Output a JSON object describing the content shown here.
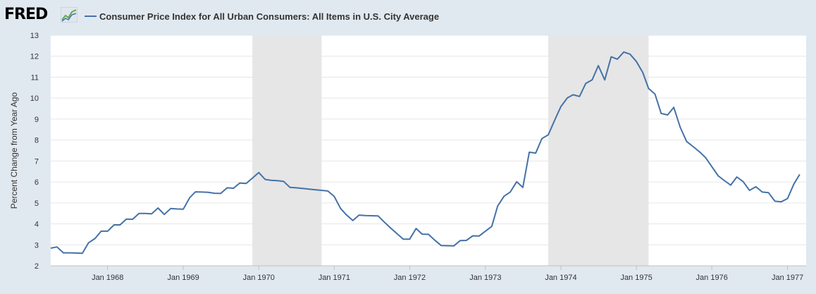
{
  "header": {
    "logo_text": "FRED",
    "logo_icon": "trend-chart-icon"
  },
  "colors": {
    "series": "#4572a7",
    "recession": "#e6e6e6",
    "plot_bg": "#ffffff",
    "page_bg": "#e1e9f0",
    "grid": "#e6e6e6"
  },
  "chart_data": {
    "type": "line",
    "title": "",
    "xlabel": "",
    "ylabel": "Percent Change from Year Ago",
    "ylim": [
      2,
      13
    ],
    "xlim": [
      "1967-04-01",
      "1977-04-01"
    ],
    "yticks": [
      2,
      3,
      4,
      5,
      6,
      7,
      8,
      9,
      10,
      11,
      12,
      13
    ],
    "xticks": [
      {
        "date": "1968-01-01",
        "label": "Jan 1968"
      },
      {
        "date": "1969-01-01",
        "label": "Jan 1969"
      },
      {
        "date": "1970-01-01",
        "label": "Jan 1970"
      },
      {
        "date": "1971-01-01",
        "label": "Jan 1971"
      },
      {
        "date": "1972-01-01",
        "label": "Jan 1972"
      },
      {
        "date": "1973-01-01",
        "label": "Jan 1973"
      },
      {
        "date": "1974-01-01",
        "label": "Jan 1974"
      },
      {
        "date": "1975-01-01",
        "label": "Jan 1975"
      },
      {
        "date": "1976-01-01",
        "label": "Jan 1976"
      },
      {
        "date": "1977-01-01",
        "label": "Jan 1977"
      }
    ],
    "grid": true,
    "legend_position": "top-left",
    "recessions": [
      {
        "start": "1969-12-01",
        "end": "1970-11-01"
      },
      {
        "start": "1973-11-01",
        "end": "1975-03-01"
      }
    ],
    "series": [
      {
        "name": "Consumer Price Index for All Urban Consumers: All Items in U.S. City Average",
        "points": [
          [
            "1967-04-01",
            2.84
          ],
          [
            "1967-05-01",
            2.9
          ],
          [
            "1967-06-01",
            2.62
          ],
          [
            "1967-07-01",
            2.62
          ],
          [
            "1967-08-01",
            2.61
          ],
          [
            "1967-09-01",
            2.6
          ],
          [
            "1967-10-01",
            3.1
          ],
          [
            "1967-11-01",
            3.3
          ],
          [
            "1967-12-01",
            3.65
          ],
          [
            "1968-01-01",
            3.65
          ],
          [
            "1968-02-01",
            3.95
          ],
          [
            "1968-03-01",
            3.95
          ],
          [
            "1968-04-01",
            4.23
          ],
          [
            "1968-05-01",
            4.22
          ],
          [
            "1968-06-01",
            4.5
          ],
          [
            "1968-07-01",
            4.5
          ],
          [
            "1968-08-01",
            4.48
          ],
          [
            "1968-09-01",
            4.76
          ],
          [
            "1968-10-01",
            4.45
          ],
          [
            "1968-11-01",
            4.73
          ],
          [
            "1968-12-01",
            4.71
          ],
          [
            "1969-01-01",
            4.7
          ],
          [
            "1969-02-01",
            5.25
          ],
          [
            "1969-03-01",
            5.53
          ],
          [
            "1969-04-01",
            5.52
          ],
          [
            "1969-05-01",
            5.51
          ],
          [
            "1969-06-01",
            5.46
          ],
          [
            "1969-07-01",
            5.45
          ],
          [
            "1969-08-01",
            5.72
          ],
          [
            "1969-09-01",
            5.7
          ],
          [
            "1969-10-01",
            5.95
          ],
          [
            "1969-11-01",
            5.93
          ],
          [
            "1969-12-01",
            6.18
          ],
          [
            "1970-01-01",
            6.45
          ],
          [
            "1970-02-01",
            6.12
          ],
          [
            "1970-03-01",
            6.08
          ],
          [
            "1970-04-01",
            6.06
          ],
          [
            "1970-05-01",
            6.03
          ],
          [
            "1970-06-01",
            5.74
          ],
          [
            "1970-07-01",
            5.72
          ],
          [
            "1970-08-01",
            5.69
          ],
          [
            "1970-09-01",
            5.66
          ],
          [
            "1970-10-01",
            5.63
          ],
          [
            "1970-11-01",
            5.6
          ],
          [
            "1970-12-01",
            5.57
          ],
          [
            "1971-01-01",
            5.31
          ],
          [
            "1971-02-01",
            4.73
          ],
          [
            "1971-03-01",
            4.43
          ],
          [
            "1971-04-01",
            4.16
          ],
          [
            "1971-05-01",
            4.42
          ],
          [
            "1971-06-01",
            4.4
          ],
          [
            "1971-07-01",
            4.39
          ],
          [
            "1971-08-01",
            4.38
          ],
          [
            "1971-09-01",
            4.08
          ],
          [
            "1971-10-01",
            3.8
          ],
          [
            "1971-11-01",
            3.53
          ],
          [
            "1971-12-01",
            3.27
          ],
          [
            "1972-01-01",
            3.27
          ],
          [
            "1972-02-01",
            3.78
          ],
          [
            "1972-03-01",
            3.51
          ],
          [
            "1972-04-01",
            3.5
          ],
          [
            "1972-05-01",
            3.22
          ],
          [
            "1972-06-01",
            2.97
          ],
          [
            "1972-07-01",
            2.96
          ],
          [
            "1972-08-01",
            2.95
          ],
          [
            "1972-09-01",
            3.2
          ],
          [
            "1972-10-01",
            3.21
          ],
          [
            "1972-11-01",
            3.43
          ],
          [
            "1972-12-01",
            3.42
          ],
          [
            "1973-01-01",
            3.65
          ],
          [
            "1973-02-01",
            3.88
          ],
          [
            "1973-03-01",
            4.85
          ],
          [
            "1973-04-01",
            5.32
          ],
          [
            "1973-05-01",
            5.52
          ],
          [
            "1973-06-01",
            6.01
          ],
          [
            "1973-07-01",
            5.74
          ],
          [
            "1973-08-01",
            7.42
          ],
          [
            "1973-09-01",
            7.38
          ],
          [
            "1973-10-01",
            8.07
          ],
          [
            "1973-11-01",
            8.25
          ],
          [
            "1973-12-01",
            8.93
          ],
          [
            "1974-01-01",
            9.6
          ],
          [
            "1974-02-01",
            10.01
          ],
          [
            "1974-03-01",
            10.16
          ],
          [
            "1974-04-01",
            10.08
          ],
          [
            "1974-05-01",
            10.7
          ],
          [
            "1974-06-01",
            10.87
          ],
          [
            "1974-07-01",
            11.55
          ],
          [
            "1974-08-01",
            10.87
          ],
          [
            "1974-09-01",
            11.97
          ],
          [
            "1974-10-01",
            11.86
          ],
          [
            "1974-11-01",
            12.2
          ],
          [
            "1974-12-01",
            12.1
          ],
          [
            "1975-01-01",
            11.75
          ],
          [
            "1975-02-01",
            11.22
          ],
          [
            "1975-03-01",
            10.46
          ],
          [
            "1975-04-01",
            10.19
          ],
          [
            "1975-05-01",
            9.27
          ],
          [
            "1975-06-01",
            9.2
          ],
          [
            "1975-07-01",
            9.56
          ],
          [
            "1975-08-01",
            8.61
          ],
          [
            "1975-09-01",
            7.93
          ],
          [
            "1975-10-01",
            7.7
          ],
          [
            "1975-11-01",
            7.45
          ],
          [
            "1975-12-01",
            7.17
          ],
          [
            "1976-01-01",
            6.73
          ],
          [
            "1976-02-01",
            6.29
          ],
          [
            "1976-03-01",
            6.07
          ],
          [
            "1976-04-01",
            5.85
          ],
          [
            "1976-05-01",
            6.24
          ],
          [
            "1976-06-01",
            6.01
          ],
          [
            "1976-07-01",
            5.6
          ],
          [
            "1976-08-01",
            5.77
          ],
          [
            "1976-09-01",
            5.52
          ],
          [
            "1976-10-01",
            5.49
          ],
          [
            "1976-11-01",
            5.08
          ],
          [
            "1976-12-01",
            5.05
          ],
          [
            "1977-01-01",
            5.21
          ],
          [
            "1977-02-01",
            5.91
          ],
          [
            "1977-03-01",
            6.36
          ]
        ]
      }
    ]
  }
}
